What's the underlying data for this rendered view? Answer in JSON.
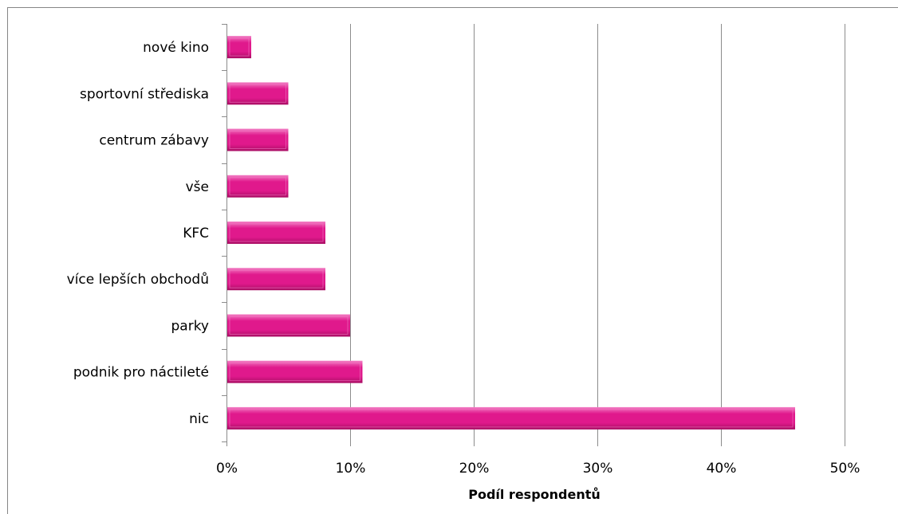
{
  "chart_data": {
    "type": "bar",
    "orientation": "horizontal",
    "categories": [
      "nové kino",
      "sportovní střediska",
      "centrum zábavy",
      "vše",
      "KFC",
      "více lepších obchodů",
      "parky",
      "podnik pro náctileté",
      "nic"
    ],
    "values": [
      0.02,
      0.05,
      0.05,
      0.05,
      0.08,
      0.08,
      0.1,
      0.11,
      0.46
    ],
    "title": "",
    "xlabel": "Podíl respondentů",
    "ylabel": "",
    "xlim": [
      0,
      0.5
    ],
    "x_ticks": [
      {
        "value": 0.0,
        "label": "0%"
      },
      {
        "value": 0.1,
        "label": "10%"
      },
      {
        "value": 0.2,
        "label": "20%"
      },
      {
        "value": 0.3,
        "label": "30%"
      },
      {
        "value": 0.4,
        "label": "40%"
      },
      {
        "value": 0.5,
        "label": "50%"
      }
    ],
    "grid": "vertical",
    "legend": "none",
    "bar_color": "#e0198c",
    "bar_light_color": "#f27ec4",
    "bar_dark_color": "#a80d63",
    "gridline_color": "#8c8c8c",
    "frame_color": "#868686"
  }
}
